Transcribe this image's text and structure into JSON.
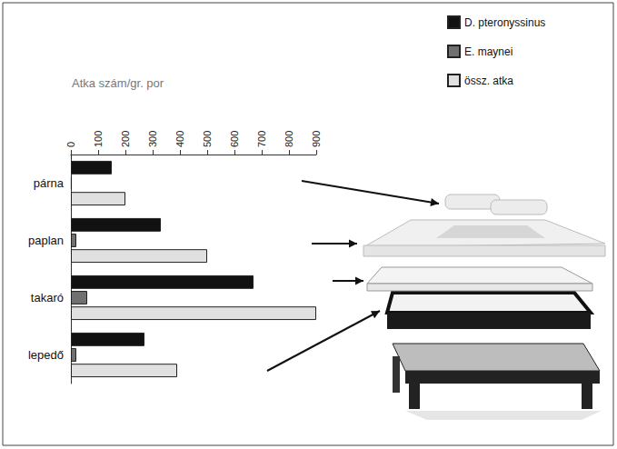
{
  "chart_data": {
    "type": "bar",
    "orientation": "horizontal",
    "x_label": "Atka szám/gr. por",
    "categories": [
      "párna",
      "paplan",
      "takaró",
      "lepedő"
    ],
    "series": [
      {
        "name": "D. pteronyssinus",
        "color": "#111111",
        "values": [
          150,
          330,
          670,
          270
        ]
      },
      {
        "name": "E. maynei",
        "color": "#707070",
        "values": [
          3,
          20,
          60,
          20
        ]
      },
      {
        "name": "össz. atka",
        "color": "#e0e0e0",
        "values": [
          200,
          500,
          900,
          390
        ]
      }
    ],
    "xlim": [
      0,
      900
    ],
    "xticks": [
      0,
      100,
      200,
      300,
      400,
      500,
      600,
      700,
      800,
      900
    ],
    "grid": false,
    "legend": "upper right"
  }
}
